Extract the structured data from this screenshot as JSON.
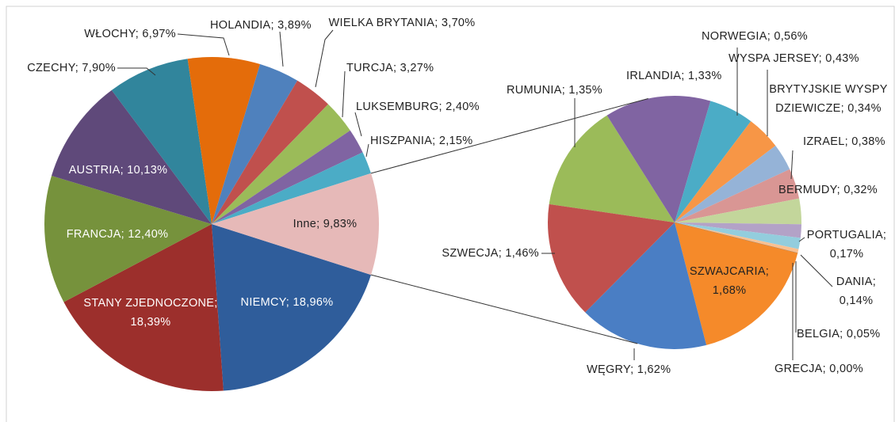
{
  "chart_data": [
    {
      "type": "pie",
      "values": [
        18.96,
        18.39,
        12.4,
        10.13,
        7.9,
        6.97,
        3.89,
        3.7,
        3.27,
        2.4,
        2.15,
        9.83
      ],
      "value_labels": [
        "NIEMCY; 18,96%",
        "STANY ZJEDNOCZONE; 18,39%",
        "FRANCJA; 12,40%",
        "AUSTRIA; 10,13%",
        "CZECHY; 7,90%",
        "WŁOCHY; 6,97%",
        "HOLANDIA; 3,89%",
        "WIELKA BRYTANIA; 3,70%",
        "TURCJA; 3,27%",
        "LUKSEMBURG; 2,40%",
        "HISZPANIA; 2,15%",
        "Inne; 9,83%"
      ],
      "colors": [
        "#2f5d9b",
        "#9c2f2c",
        "#76923c",
        "#5f497a",
        "#31859c",
        "#e46c0a",
        "#4f81bd",
        "#c0504d",
        "#9bbb59",
        "#8064a2",
        "#4bacc6",
        "#e6b9b8"
      ]
    },
    {
      "type": "pie",
      "values": [
        1.35,
        1.33,
        0.56,
        0.43,
        0.34,
        0.38,
        0.32,
        0.17,
        0.14,
        0.05,
        0.0,
        1.68,
        1.62,
        1.46
      ],
      "value_labels": [
        "RUMUNIA; 1,35%",
        "IRLANDIA; 1,33%",
        "NORWEGIA; 0,56%",
        "WYSPA JERSEY; 0,43%",
        "BRYTYJSKIE WYSPY DZIEWICZE; 0,34%",
        "IZRAEL; 0,38%",
        "BERMUDY; 0,32%",
        "PORTUGALIA; 0,17%",
        "DANIA; 0,14%",
        "BELGIA; 0,05%",
        "GRECJA; 0,00%",
        "SZWAJCARIA; 1,68%",
        "WĘGRY; 1,62%",
        "SZWECJA; 1,46%"
      ],
      "colors": [
        "#9bbb59",
        "#8064a2",
        "#4bacc6",
        "#f79646",
        "#95b3d7",
        "#d99694",
        "#c3d69b",
        "#b3a2c7",
        "#93cddd",
        "#fac090",
        "#cccccc",
        "#f58a2a",
        "#4a7ec4",
        "#c0504d"
      ]
    }
  ]
}
